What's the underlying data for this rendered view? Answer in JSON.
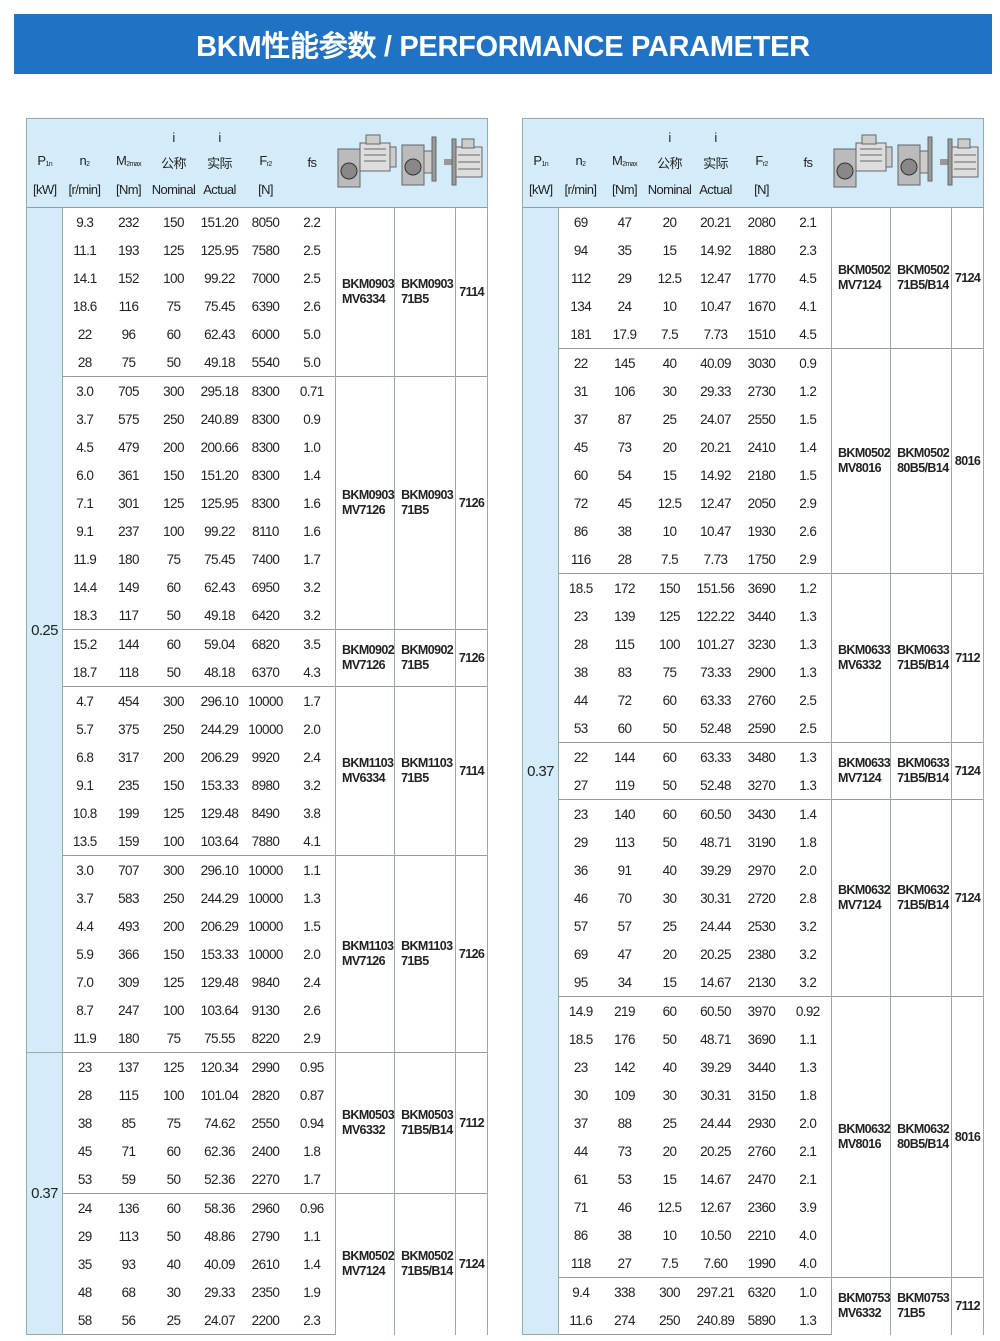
{
  "title": "BKM性能参数 / PERFORMANCE PARAMETER",
  "colors": {
    "banner": "#1f72c4",
    "header_bg": "#d4ecf9",
    "border": "#9aa"
  },
  "header": {
    "p": "P",
    "p_sub": "1n",
    "p_unit": "[kW]",
    "n": "n",
    "n_sub": "2",
    "n_unit": "[r/min]",
    "m": "M",
    "m_sub": "2max",
    "m_unit": "[Nm]",
    "i_nom_top": "i",
    "i_nom_cn": "公称",
    "i_nom_en": "Nominal",
    "i_act_top": "i",
    "i_act_cn": "实际",
    "i_act_en": "Actual",
    "f": "F",
    "f_sub": "r2",
    "f_unit": "[N]",
    "fs": "fs",
    "icons": [
      "gearmotor-icon",
      "gearbox-flange-icon",
      "motor-icon"
    ]
  },
  "tables": [
    {
      "power_groups": [
        {
          "power": "0.25",
          "groups": [
            {
              "m1": "BKM0903",
              "m2": "MV6334",
              "a1": "BKM0903",
              "a2": "71B5",
              "code": "7114",
              "rows": [
                [
                  "9.3",
                  "232",
                  "150",
                  "151.20",
                  "8050",
                  "2.2"
                ],
                [
                  "11.1",
                  "193",
                  "125",
                  "125.95",
                  "7580",
                  "2.5"
                ],
                [
                  "14.1",
                  "152",
                  "100",
                  "99.22",
                  "7000",
                  "2.5"
                ],
                [
                  "18.6",
                  "116",
                  "75",
                  "75.45",
                  "6390",
                  "2.6"
                ],
                [
                  "22",
                  "96",
                  "60",
                  "62.43",
                  "6000",
                  "5.0"
                ],
                [
                  "28",
                  "75",
                  "50",
                  "49.18",
                  "5540",
                  "5.0"
                ]
              ]
            },
            {
              "m1": "BKM0903",
              "m2": "MV7126",
              "a1": "BKM0903",
              "a2": "71B5",
              "code": "7126",
              "rows": [
                [
                  "3.0",
                  "705",
                  "300",
                  "295.18",
                  "8300",
                  "0.71"
                ],
                [
                  "3.7",
                  "575",
                  "250",
                  "240.89",
                  "8300",
                  "0.9"
                ],
                [
                  "4.5",
                  "479",
                  "200",
                  "200.66",
                  "8300",
                  "1.0"
                ],
                [
                  "6.0",
                  "361",
                  "150",
                  "151.20",
                  "8300",
                  "1.4"
                ],
                [
                  "7.1",
                  "301",
                  "125",
                  "125.95",
                  "8300",
                  "1.6"
                ],
                [
                  "9.1",
                  "237",
                  "100",
                  "99.22",
                  "8110",
                  "1.6"
                ],
                [
                  "11.9",
                  "180",
                  "75",
                  "75.45",
                  "7400",
                  "1.7"
                ],
                [
                  "14.4",
                  "149",
                  "60",
                  "62.43",
                  "6950",
                  "3.2"
                ],
                [
                  "18.3",
                  "117",
                  "50",
                  "49.18",
                  "6420",
                  "3.2"
                ]
              ]
            },
            {
              "m1": "BKM0902",
              "m2": "MV7126",
              "a1": "BKM0902",
              "a2": "71B5",
              "code": "7126",
              "rows": [
                [
                  "15.2",
                  "144",
                  "60",
                  "59.04",
                  "6820",
                  "3.5"
                ],
                [
                  "18.7",
                  "118",
                  "50",
                  "48.18",
                  "6370",
                  "4.3"
                ]
              ]
            },
            {
              "m1": "BKM1103",
              "m2": "MV6334",
              "a1": "BKM1103",
              "a2": "71B5",
              "code": "7114",
              "rows": [
                [
                  "4.7",
                  "454",
                  "300",
                  "296.10",
                  "10000",
                  "1.7"
                ],
                [
                  "5.7",
                  "375",
                  "250",
                  "244.29",
                  "10000",
                  "2.0"
                ],
                [
                  "6.8",
                  "317",
                  "200",
                  "206.29",
                  "9920",
                  "2.4"
                ],
                [
                  "9.1",
                  "235",
                  "150",
                  "153.33",
                  "8980",
                  "3.2"
                ],
                [
                  "10.8",
                  "199",
                  "125",
                  "129.48",
                  "8490",
                  "3.8"
                ],
                [
                  "13.5",
                  "159",
                  "100",
                  "103.64",
                  "7880",
                  "4.1"
                ]
              ]
            },
            {
              "m1": "BKM1103",
              "m2": "MV7126",
              "a1": "BKM1103",
              "a2": "71B5",
              "code": "7126",
              "rows": [
                [
                  "3.0",
                  "707",
                  "300",
                  "296.10",
                  "10000",
                  "1.1"
                ],
                [
                  "3.7",
                  "583",
                  "250",
                  "244.29",
                  "10000",
                  "1.3"
                ],
                [
                  "4.4",
                  "493",
                  "200",
                  "206.29",
                  "10000",
                  "1.5"
                ],
                [
                  "5.9",
                  "366",
                  "150",
                  "153.33",
                  "10000",
                  "2.0"
                ],
                [
                  "7.0",
                  "309",
                  "125",
                  "129.48",
                  "9840",
                  "2.4"
                ],
                [
                  "8.7",
                  "247",
                  "100",
                  "103.64",
                  "9130",
                  "2.6"
                ],
                [
                  "11.9",
                  "180",
                  "75",
                  "75.55",
                  "8220",
                  "2.9"
                ]
              ]
            }
          ]
        },
        {
          "power": "0.37",
          "groups": [
            {
              "m1": "BKM0503",
              "m2": "MV6332",
              "a1": "BKM0503",
              "a2": "71B5/B14",
              "code": "7112",
              "rows": [
                [
                  "23",
                  "137",
                  "125",
                  "120.34",
                  "2990",
                  "0.95"
                ],
                [
                  "28",
                  "115",
                  "100",
                  "101.04",
                  "2820",
                  "0.87"
                ],
                [
                  "38",
                  "85",
                  "75",
                  "74.62",
                  "2550",
                  "0.94"
                ],
                [
                  "45",
                  "71",
                  "60",
                  "62.36",
                  "2400",
                  "1.8"
                ],
                [
                  "53",
                  "59",
                  "50",
                  "52.36",
                  "2270",
                  "1.7"
                ]
              ]
            },
            {
              "m1": "BKM0502",
              "m2": "MV7124",
              "a1": "BKM0502",
              "a2": "71B5/B14",
              "code": "7124",
              "rows": [
                [
                  "24",
                  "136",
                  "60",
                  "58.36",
                  "2960",
                  "0.96"
                ],
                [
                  "29",
                  "113",
                  "50",
                  "48.86",
                  "2790",
                  "1.1"
                ],
                [
                  "35",
                  "93",
                  "40",
                  "40.09",
                  "2610",
                  "1.4"
                ],
                [
                  "48",
                  "68",
                  "30",
                  "29.33",
                  "2350",
                  "1.9"
                ],
                [
                  "58",
                  "56",
                  "25",
                  "24.07",
                  "2200",
                  "2.3"
                ]
              ]
            }
          ]
        }
      ]
    },
    {
      "power_groups": [
        {
          "power": "0.37",
          "groups": [
            {
              "m1": "BKM0502",
              "m2": "MV7124",
              "a1": "BKM0502",
              "a2": "71B5/B14",
              "code": "7124",
              "rows": [
                [
                  "69",
                  "47",
                  "20",
                  "20.21",
                  "2080",
                  "2.1"
                ],
                [
                  "94",
                  "35",
                  "15",
                  "14.92",
                  "1880",
                  "2.3"
                ],
                [
                  "112",
                  "29",
                  "12.5",
                  "12.47",
                  "1770",
                  "4.5"
                ],
                [
                  "134",
                  "24",
                  "10",
                  "10.47",
                  "1670",
                  "4.1"
                ],
                [
                  "181",
                  "17.9",
                  "7.5",
                  "7.73",
                  "1510",
                  "4.5"
                ]
              ]
            },
            {
              "m1": "BKM0502",
              "m2": "MV8016",
              "a1": "BKM0502",
              "a2": "80B5/B14",
              "code": "8016",
              "rows": [
                [
                  "22",
                  "145",
                  "40",
                  "40.09",
                  "3030",
                  "0.9"
                ],
                [
                  "31",
                  "106",
                  "30",
                  "29.33",
                  "2730",
                  "1.2"
                ],
                [
                  "37",
                  "87",
                  "25",
                  "24.07",
                  "2550",
                  "1.5"
                ],
                [
                  "45",
                  "73",
                  "20",
                  "20.21",
                  "2410",
                  "1.4"
                ],
                [
                  "60",
                  "54",
                  "15",
                  "14.92",
                  "2180",
                  "1.5"
                ],
                [
                  "72",
                  "45",
                  "12.5",
                  "12.47",
                  "2050",
                  "2.9"
                ],
                [
                  "86",
                  "38",
                  "10",
                  "10.47",
                  "1930",
                  "2.6"
                ],
                [
                  "116",
                  "28",
                  "7.5",
                  "7.73",
                  "1750",
                  "2.9"
                ]
              ]
            },
            {
              "m1": "BKM0633",
              "m2": "MV6332",
              "a1": "BKM0633",
              "a2": "71B5/B14",
              "code": "7112",
              "rows": [
                [
                  "18.5",
                  "172",
                  "150",
                  "151.56",
                  "3690",
                  "1.2"
                ],
                [
                  "23",
                  "139",
                  "125",
                  "122.22",
                  "3440",
                  "1.3"
                ],
                [
                  "28",
                  "115",
                  "100",
                  "101.27",
                  "3230",
                  "1.3"
                ],
                [
                  "38",
                  "83",
                  "75",
                  "73.33",
                  "2900",
                  "1.3"
                ],
                [
                  "44",
                  "72",
                  "60",
                  "63.33",
                  "2760",
                  "2.5"
                ],
                [
                  "53",
                  "60",
                  "50",
                  "52.48",
                  "2590",
                  "2.5"
                ]
              ]
            },
            {
              "m1": "BKM0633",
              "m2": "MV7124",
              "a1": "BKM0633",
              "a2": "71B5/B14",
              "code": "7124",
              "rows": [
                [
                  "22",
                  "144",
                  "60",
                  "63.33",
                  "3480",
                  "1.3"
                ],
                [
                  "27",
                  "119",
                  "50",
                  "52.48",
                  "3270",
                  "1.3"
                ]
              ]
            },
            {
              "m1": "BKM0632",
              "m2": "MV7124",
              "a1": "BKM0632",
              "a2": "71B5/B14",
              "code": "7124",
              "rows": [
                [
                  "23",
                  "140",
                  "60",
                  "60.50",
                  "3430",
                  "1.4"
                ],
                [
                  "29",
                  "113",
                  "50",
                  "48.71",
                  "3190",
                  "1.8"
                ],
                [
                  "36",
                  "91",
                  "40",
                  "39.29",
                  "2970",
                  "2.0"
                ],
                [
                  "46",
                  "70",
                  "30",
                  "30.31",
                  "2720",
                  "2.8"
                ],
                [
                  "57",
                  "57",
                  "25",
                  "24.44",
                  "2530",
                  "3.2"
                ],
                [
                  "69",
                  "47",
                  "20",
                  "20.25",
                  "2380",
                  "3.2"
                ],
                [
                  "95",
                  "34",
                  "15",
                  "14.67",
                  "2130",
                  "3.2"
                ]
              ]
            },
            {
              "m1": "BKM0632",
              "m2": "MV8016",
              "a1": "BKM0632",
              "a2": "80B5/B14",
              "code": "8016",
              "rows": [
                [
                  "14.9",
                  "219",
                  "60",
                  "60.50",
                  "3970",
                  "0.92"
                ],
                [
                  "18.5",
                  "176",
                  "50",
                  "48.71",
                  "3690",
                  "1.1"
                ],
                [
                  "23",
                  "142",
                  "40",
                  "39.29",
                  "3440",
                  "1.3"
                ],
                [
                  "30",
                  "109",
                  "30",
                  "30.31",
                  "3150",
                  "1.8"
                ],
                [
                  "37",
                  "88",
                  "25",
                  "24.44",
                  "2930",
                  "2.0"
                ],
                [
                  "44",
                  "73",
                  "20",
                  "20.25",
                  "2760",
                  "2.1"
                ],
                [
                  "61",
                  "53",
                  "15",
                  "14.67",
                  "2470",
                  "2.1"
                ],
                [
                  "71",
                  "46",
                  "12.5",
                  "12.67",
                  "2360",
                  "3.9"
                ],
                [
                  "86",
                  "38",
                  "10",
                  "10.50",
                  "2210",
                  "4.0"
                ],
                [
                  "118",
                  "27",
                  "7.5",
                  "7.60",
                  "1990",
                  "4.0"
                ]
              ]
            },
            {
              "m1": "BKM0753",
              "m2": "MV6332",
              "a1": "BKM0753",
              "a2": "71B5",
              "code": "7112",
              "rows": [
                [
                  "9.4",
                  "338",
                  "300",
                  "297.21",
                  "6320",
                  "1.0"
                ],
                [
                  "11.6",
                  "274",
                  "250",
                  "240.89",
                  "5890",
                  "1.3"
                ]
              ]
            }
          ]
        }
      ]
    }
  ]
}
